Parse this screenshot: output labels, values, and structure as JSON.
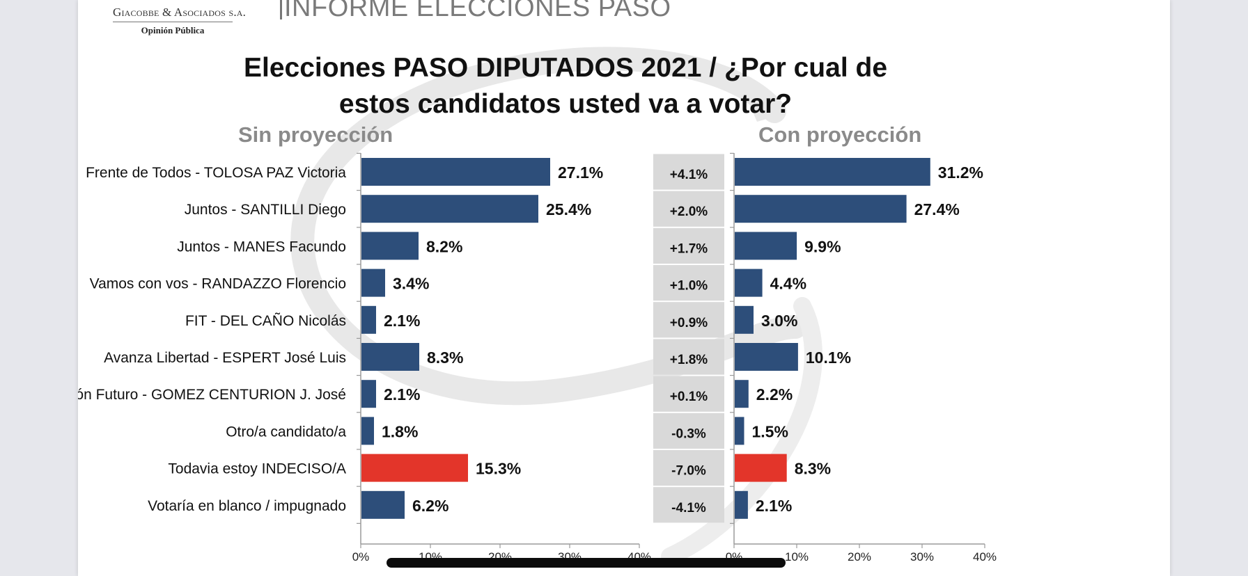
{
  "header": {
    "logo_name": "Giacobbe & Asociados s.a.",
    "logo_subtitle": "Opinión Pública",
    "report_title": "INFORME ELECCIONES PASO"
  },
  "colors": {
    "bar": "#2d4e7a",
    "highlight": "#e3352a",
    "diff_box": "#d9d9d9",
    "panel_title": "#8a8a8a"
  },
  "chart_data": {
    "type": "bar",
    "orientation": "horizontal",
    "title": "Elecciones PASO DIPUTADOS 2021 / ¿Por cual de estos candidatos usted va a votar?",
    "categories": [
      "Frente de Todos - TOLOSA PAZ Victoria",
      "Juntos - SANTILLI Diego",
      "Juntos - MANES Facundo",
      "Vamos con vos - RANDAZZO Florencio",
      "FIT - DEL CAÑO Nicolás",
      "Avanza Libertad - ESPERT José Luis",
      "Unión Futuro - GOMEZ CENTURION  J. José",
      "Otro/a candidato/a",
      "Todavia estoy INDECISO/A",
      "Votaría en blanco / impugnado"
    ],
    "highlight_category": "Todavia estoy INDECISO/A",
    "panels": [
      {
        "title": "Sin proyección",
        "values": [
          27.1,
          25.4,
          8.2,
          3.4,
          2.1,
          8.3,
          2.1,
          1.8,
          15.3,
          6.2
        ],
        "value_labels": [
          "27.1%",
          "25.4%",
          "8.2%",
          "3.4%",
          "2.1%",
          "8.3%",
          "2.1%",
          "1.8%",
          "15.3%",
          "6.2%"
        ],
        "xlim": [
          0,
          40
        ],
        "xticks": [
          "0%",
          "10%",
          "20%",
          "30%",
          "40%"
        ]
      },
      {
        "title": "Con proyección",
        "values": [
          31.2,
          27.4,
          9.9,
          4.4,
          3.0,
          10.1,
          2.2,
          1.5,
          8.3,
          2.1
        ],
        "value_labels": [
          "31.2%",
          "27.4%",
          "9.9%",
          "4.4%",
          "3.0%",
          "10.1%",
          "2.2%",
          "1.5%",
          "8.3%",
          "2.1%"
        ],
        "xlim": [
          0,
          40
        ],
        "xticks": [
          "0%",
          "10%",
          "20%",
          "30%",
          "40%"
        ]
      }
    ],
    "differences": [
      "+4.1%",
      "+2.0%",
      "+1.7%",
      "+1.0%",
      "+0.9%",
      "+1.8%",
      "+0.1%",
      "-0.3%",
      "-7.0%",
      "-4.1%"
    ]
  }
}
